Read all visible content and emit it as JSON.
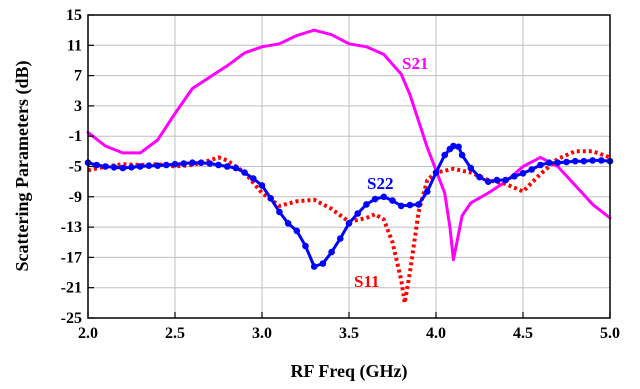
{
  "chart_data": {
    "type": "line",
    "xlabel": "RF Freq (GHz)",
    "ylabel": "Scattering Parameters (dB)",
    "xlim": [
      2.0,
      5.0
    ],
    "ylim": [
      -25,
      15
    ],
    "x_ticks": [
      2.0,
      2.5,
      3.0,
      3.5,
      4.0,
      4.5,
      5.0
    ],
    "x_tick_labels": [
      "2.0",
      "2.5",
      "3.0",
      "3.5",
      "4.0",
      "4.5",
      "5.0"
    ],
    "y_ticks": [
      15,
      11,
      7,
      3,
      -1,
      -5,
      -9,
      -13,
      -17,
      -21,
      -25
    ],
    "y_tick_labels": [
      "15",
      "11",
      "7",
      "3",
      "-1",
      "-5",
      "-9",
      "-13",
      "-17",
      "-21",
      "-25"
    ],
    "grid": true,
    "series": [
      {
        "name": "S21",
        "color": "#ff00ff",
        "style": "solid",
        "x": [
          2.0,
          2.1,
          2.2,
          2.3,
          2.4,
          2.5,
          2.6,
          2.7,
          2.8,
          2.9,
          3.0,
          3.1,
          3.2,
          3.3,
          3.4,
          3.5,
          3.6,
          3.7,
          3.8,
          3.85,
          3.9,
          3.95,
          4.0,
          4.05,
          4.08,
          4.1,
          4.12,
          4.15,
          4.2,
          4.3,
          4.4,
          4.5,
          4.6,
          4.7,
          4.8,
          4.9,
          5.0
        ],
        "y": [
          -0.5,
          -2.3,
          -3.2,
          -3.2,
          -1.5,
          2.0,
          5.3,
          6.8,
          8.3,
          10.0,
          10.8,
          11.2,
          12.3,
          13.0,
          12.4,
          11.2,
          10.8,
          9.8,
          7.2,
          4.5,
          1.0,
          -2.5,
          -5.5,
          -8.5,
          -13.0,
          -17.3,
          -15.0,
          -11.5,
          -9.8,
          -8.5,
          -7.0,
          -5.0,
          -3.8,
          -5.0,
          -7.5,
          -10.0,
          -11.8
        ]
      },
      {
        "name": "S11",
        "color": "#ff0000",
        "style": "dotted",
        "x": [
          2.0,
          2.1,
          2.2,
          2.3,
          2.4,
          2.5,
          2.6,
          2.7,
          2.75,
          2.8,
          2.9,
          3.0,
          3.1,
          3.2,
          3.3,
          3.4,
          3.5,
          3.6,
          3.65,
          3.7,
          3.75,
          3.8,
          3.82,
          3.85,
          3.9,
          3.95,
          4.0,
          4.1,
          4.2,
          4.3,
          4.4,
          4.5,
          4.6,
          4.7,
          4.8,
          4.9,
          5.0
        ],
        "y": [
          -5.5,
          -5.0,
          -4.7,
          -4.8,
          -4.7,
          -5.0,
          -4.8,
          -4.2,
          -3.8,
          -4.2,
          -5.8,
          -8.5,
          -10.2,
          -9.6,
          -9.4,
          -10.6,
          -12.3,
          -11.8,
          -11.3,
          -12.0,
          -15.0,
          -20.0,
          -23.0,
          -19.0,
          -11.0,
          -6.8,
          -5.8,
          -5.3,
          -5.8,
          -6.8,
          -7.3,
          -8.3,
          -6.0,
          -4.0,
          -3.0,
          -3.0,
          -3.8
        ]
      },
      {
        "name": "S22",
        "color": "#0000ff",
        "style": "solid-markers",
        "x": [
          2.0,
          2.05,
          2.1,
          2.15,
          2.2,
          2.25,
          2.3,
          2.35,
          2.4,
          2.45,
          2.5,
          2.55,
          2.6,
          2.65,
          2.7,
          2.75,
          2.8,
          2.85,
          2.9,
          2.95,
          3.0,
          3.05,
          3.1,
          3.15,
          3.2,
          3.25,
          3.3,
          3.35,
          3.4,
          3.45,
          3.5,
          3.55,
          3.6,
          3.65,
          3.7,
          3.75,
          3.8,
          3.85,
          3.9,
          3.95,
          4.0,
          4.05,
          4.08,
          4.1,
          4.13,
          4.15,
          4.2,
          4.25,
          4.3,
          4.35,
          4.4,
          4.45,
          4.5,
          4.55,
          4.6,
          4.65,
          4.7,
          4.75,
          4.8,
          4.85,
          4.9,
          4.95,
          5.0
        ],
        "y": [
          -4.5,
          -4.8,
          -5.0,
          -5.1,
          -5.2,
          -5.1,
          -5.0,
          -4.9,
          -4.9,
          -4.8,
          -4.7,
          -4.6,
          -4.5,
          -4.5,
          -4.6,
          -4.8,
          -5.0,
          -5.2,
          -5.8,
          -6.6,
          -7.5,
          -9.2,
          -11.0,
          -12.5,
          -13.5,
          -15.5,
          -18.2,
          -17.8,
          -16.3,
          -14.5,
          -12.5,
          -11.2,
          -10.0,
          -9.3,
          -9.0,
          -9.5,
          -10.2,
          -10.1,
          -10.0,
          -8.3,
          -5.8,
          -3.5,
          -2.7,
          -2.3,
          -2.4,
          -3.5,
          -5.2,
          -6.4,
          -7.0,
          -6.8,
          -6.8,
          -6.3,
          -5.9,
          -5.4,
          -4.8,
          -4.5,
          -4.5,
          -4.4,
          -4.3,
          -4.3,
          -4.2,
          -4.2,
          -4.3
        ]
      }
    ],
    "series_labels": [
      "S21",
      "S11",
      "S22"
    ]
  }
}
